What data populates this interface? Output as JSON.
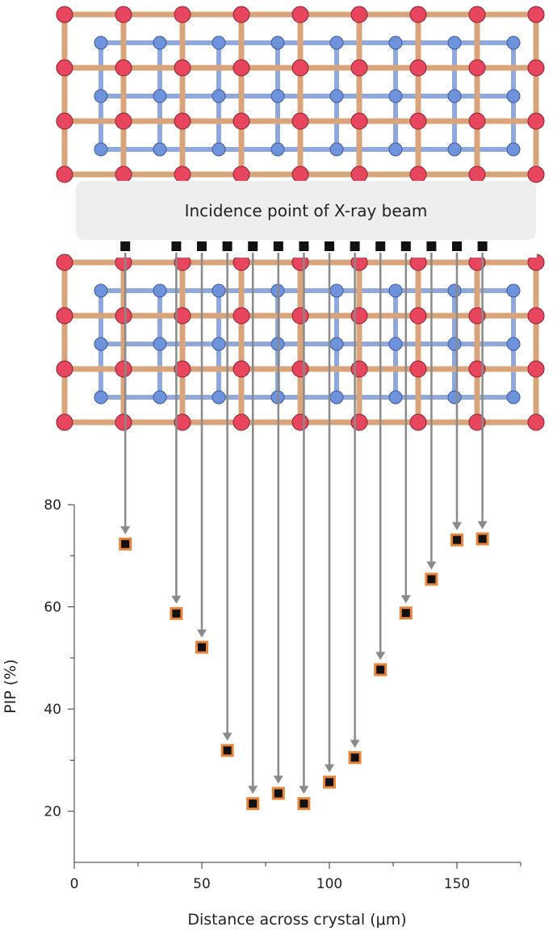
{
  "banner": {
    "label": "Incidence point of X-ray beam"
  },
  "colors": {
    "red_atom": "#e8455e",
    "blue_atom": "#6f93db",
    "tan_bond": "#d9a47a",
    "blue_bond": "#8fa9dd",
    "arrow": "#8a8a8a",
    "marker_fill": "#111111",
    "marker_edge": "#e8853a"
  },
  "chart_data": {
    "type": "scatter",
    "xlabel": "Distance across crystal (μm)",
    "ylabel": "PIP (%)",
    "xlim": [
      0,
      175
    ],
    "ylim": [
      10,
      80
    ],
    "x_ticks": [
      0,
      50,
      100,
      150
    ],
    "y_ticks": [
      20,
      40,
      60,
      80
    ],
    "x_minor_ticks": [
      25,
      75,
      125,
      175
    ],
    "y_minor_ticks": [
      30,
      50,
      70
    ],
    "grid": false,
    "points": [
      {
        "x": 20,
        "y": 72.3
      },
      {
        "x": 40,
        "y": 58.7
      },
      {
        "x": 50,
        "y": 52.1
      },
      {
        "x": 60,
        "y": 31.9
      },
      {
        "x": 70,
        "y": 21.5
      },
      {
        "x": 80,
        "y": 23.5
      },
      {
        "x": 90,
        "y": 21.5
      },
      {
        "x": 100,
        "y": 25.7
      },
      {
        "x": 110,
        "y": 30.5
      },
      {
        "x": 120,
        "y": 47.7
      },
      {
        "x": 130,
        "y": 58.8
      },
      {
        "x": 140,
        "y": 65.4
      },
      {
        "x": 150,
        "y": 73.1
      },
      {
        "x": 160,
        "y": 73.3
      }
    ]
  }
}
